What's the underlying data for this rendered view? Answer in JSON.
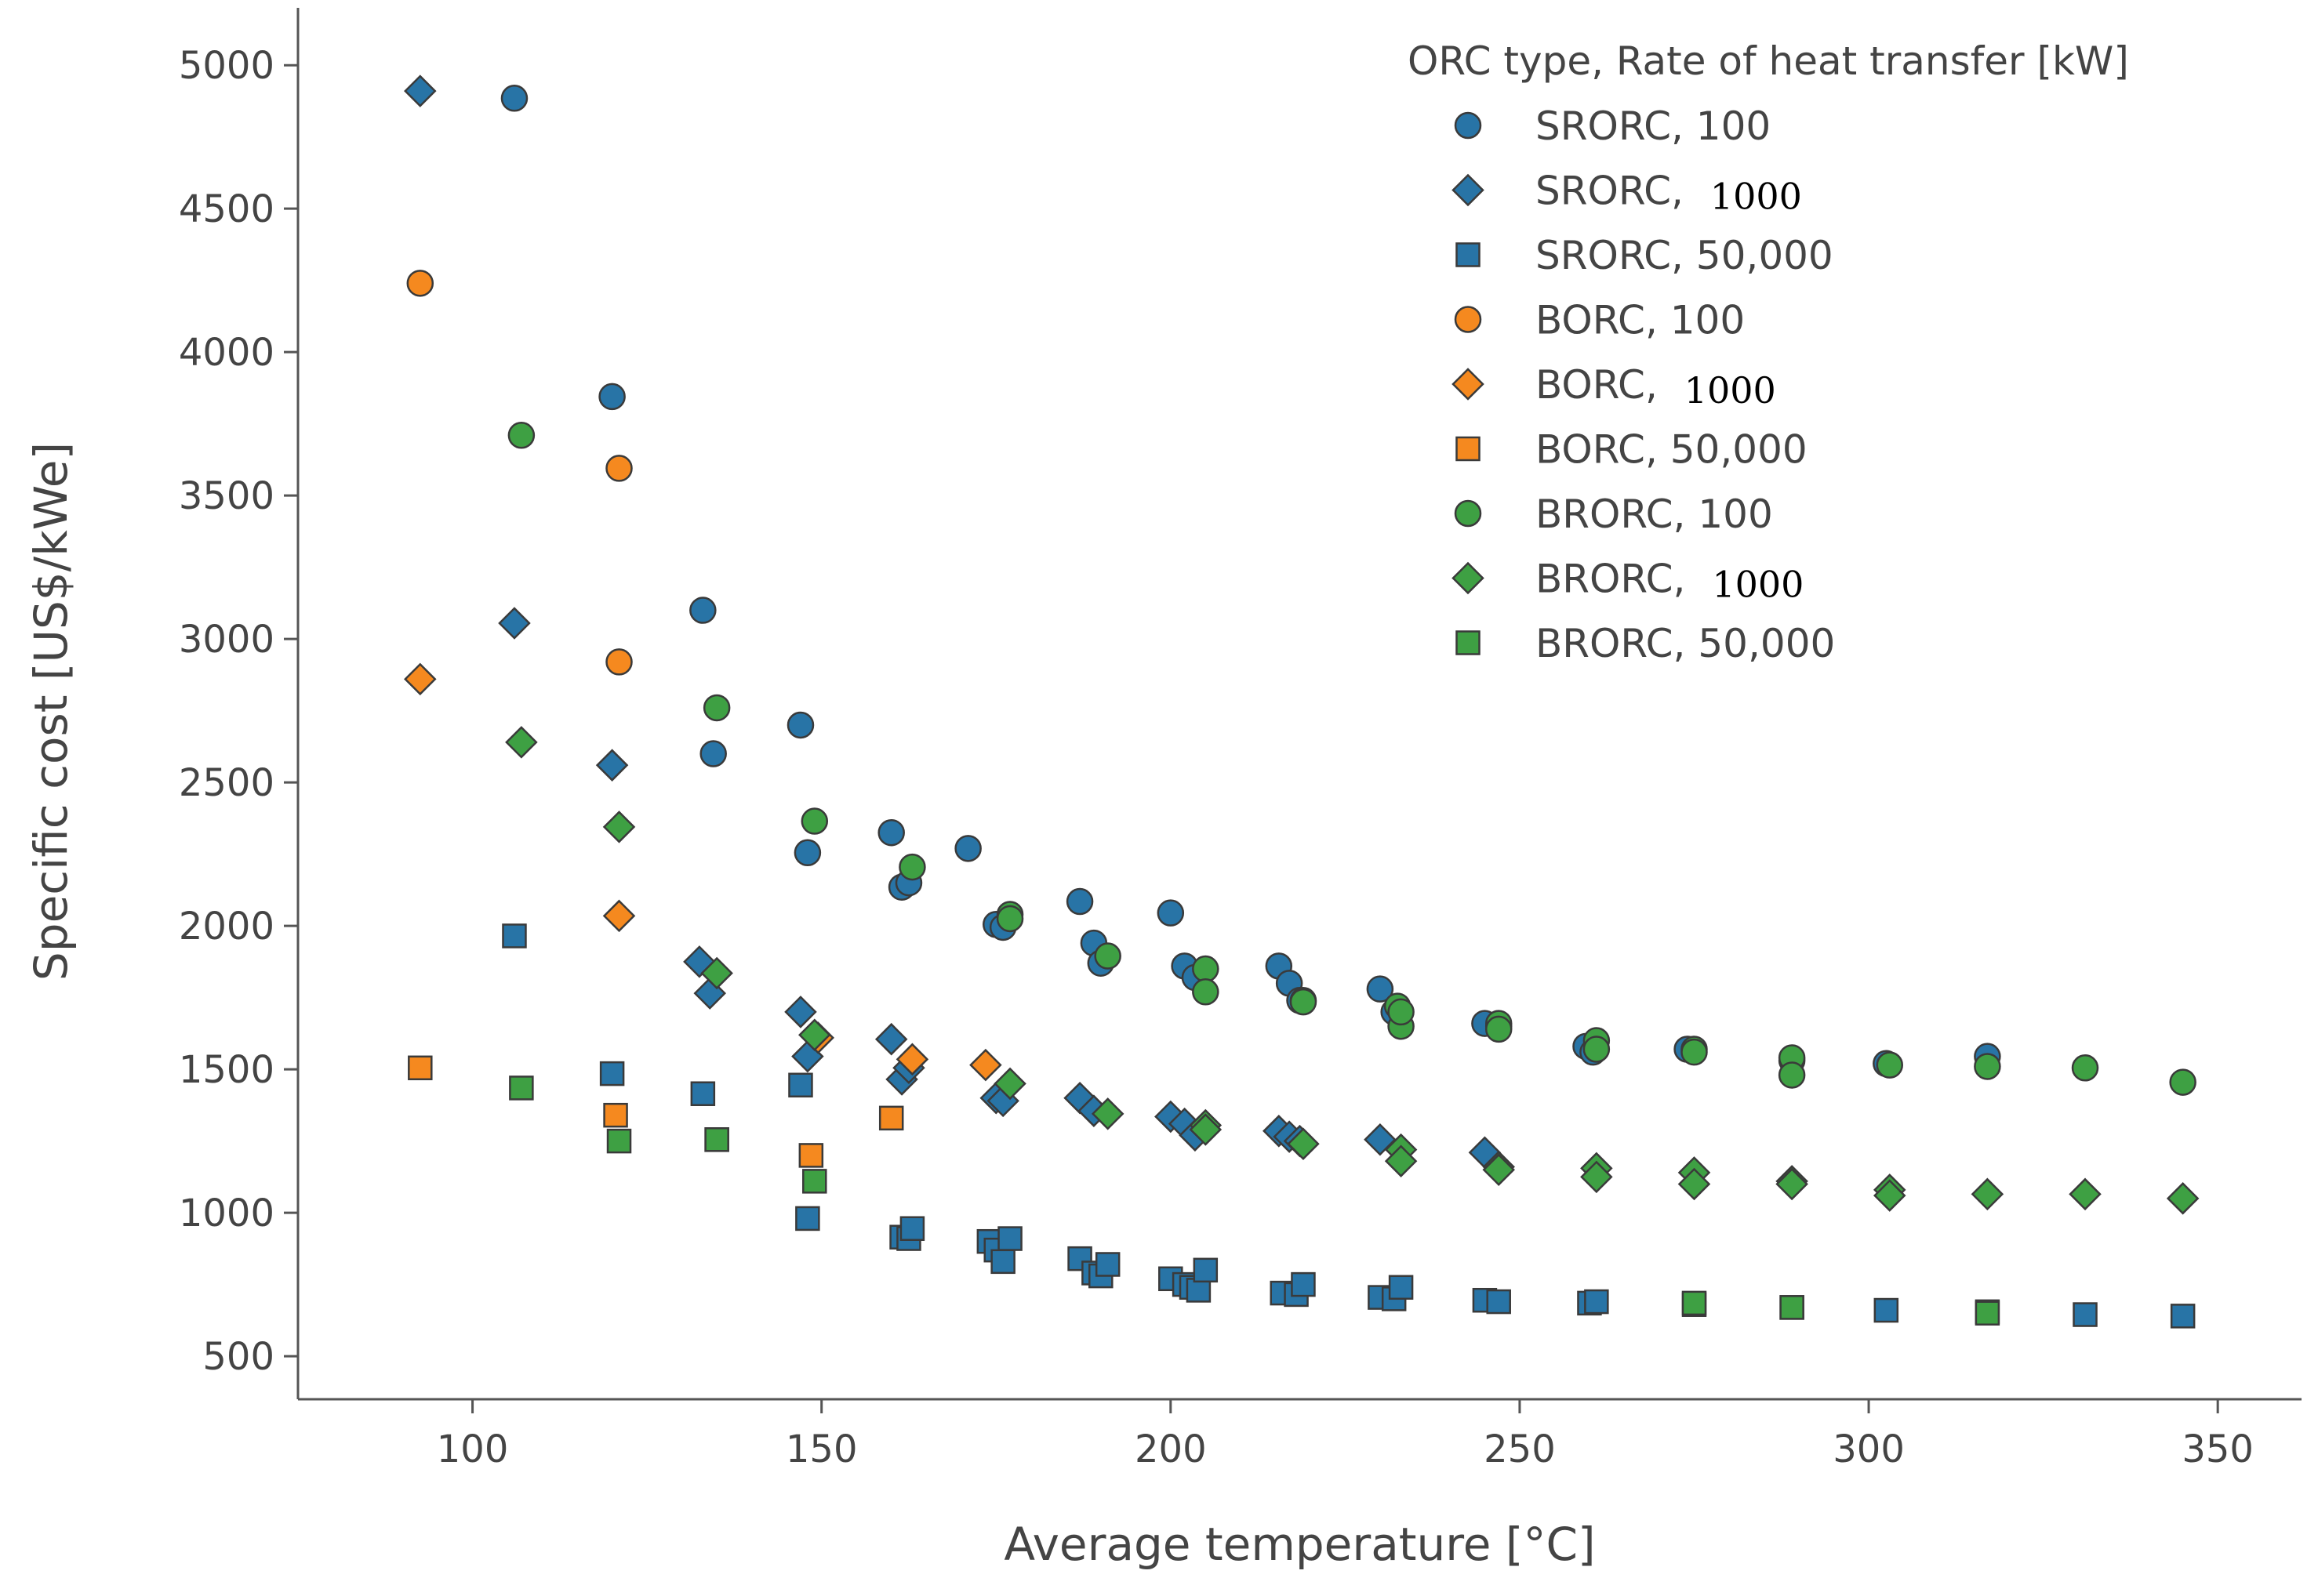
{
  "colors": {
    "SRORC": "#2874a6",
    "BORC": "#f5891f",
    "BRORC": "#3ea043",
    "axis": "#555555",
    "marker_edge": "#3a3a3a"
  },
  "chart_data": {
    "type": "scatter",
    "xlabel": "Average temperature [°C]",
    "ylabel": "Specific cost [US$/kWe]",
    "xlim": [
      75,
      362
    ],
    "ylim": [
      350,
      5200
    ],
    "xticks": [
      "100",
      "150",
      "200",
      "250",
      "300",
      "350"
    ],
    "yticks": [
      "500",
      "1000",
      "1500",
      "2000",
      "2500",
      "3000",
      "3500",
      "4000",
      "4500",
      "5000"
    ],
    "legend": {
      "title": "ORC type, Rate of heat transfer [kW]",
      "position": "top-right",
      "entries": [
        {
          "prefix": "SRORC, ",
          "num": "100",
          "serif": false
        },
        {
          "prefix": "SRORC, ",
          "num": "1000",
          "serif": true
        },
        {
          "prefix": "SRORC, ",
          "num": "50,000",
          "serif": false
        },
        {
          "prefix": "BORC, ",
          "num": "100",
          "serif": false
        },
        {
          "prefix": "BORC, ",
          "num": "1000",
          "serif": true
        },
        {
          "prefix": "BORC, ",
          "num": "50,000",
          "serif": false
        },
        {
          "prefix": "BRORC, ",
          "num": "100",
          "serif": false
        },
        {
          "prefix": "BRORC, ",
          "num": "1000",
          "serif": true
        },
        {
          "prefix": "BRORC, ",
          "num": "50,000",
          "serif": false
        }
      ]
    },
    "series": [
      {
        "name": "SRORC, 100",
        "orc": "SRORC",
        "marker": "circle",
        "x": [
          106,
          120,
          133,
          134.5,
          147,
          148,
          160,
          161.5,
          162.5,
          171,
          175,
          176,
          187,
          189,
          190,
          200,
          202,
          203.5,
          215.5,
          217,
          218.5,
          230,
          232,
          245,
          247,
          259.5,
          260.5,
          274,
          289,
          302.5,
          317
        ],
        "y": [
          4885,
          3845,
          3100,
          2600,
          2700,
          2255,
          2325,
          2135,
          2150,
          2270,
          2005,
          1995,
          2085,
          1940,
          1870,
          2045,
          1860,
          1820,
          1860,
          1800,
          1740,
          1780,
          1700,
          1660,
          1650,
          1580,
          1560,
          1570,
          1530,
          1520,
          1545
        ]
      },
      {
        "name": "SRORC, 1000",
        "orc": "SRORC",
        "marker": "diamond",
        "x": [
          92.5,
          106,
          120,
          132.5,
          134,
          147,
          148,
          160,
          161.5,
          162.5,
          175,
          176,
          187,
          189,
          200,
          202,
          203.5,
          215.5,
          217,
          218.5,
          230,
          245
        ],
        "y": [
          4910,
          3055,
          2560,
          1875,
          1765,
          1700,
          1545,
          1605,
          1465,
          1505,
          1400,
          1390,
          1400,
          1355,
          1335,
          1310,
          1270,
          1285,
          1265,
          1250,
          1255,
          1210
        ]
      },
      {
        "name": "SRORC, 50,000",
        "orc": "SRORC",
        "marker": "square",
        "x": [
          106,
          120,
          133,
          147,
          148,
          161.5,
          162.5,
          163,
          174,
          175,
          176,
          177,
          187,
          189,
          190,
          191,
          200,
          202,
          203,
          204,
          205,
          216,
          218,
          219,
          230,
          232,
          233,
          245,
          247,
          260,
          261,
          275,
          289,
          302.5,
          317,
          331,
          345
        ],
        "y": [
          1965,
          1485,
          1415,
          1445,
          980,
          915,
          910,
          945,
          900,
          870,
          830,
          910,
          840,
          790,
          780,
          820,
          770,
          750,
          740,
          730,
          800,
          720,
          715,
          750,
          705,
          700,
          740,
          695,
          690,
          685,
          690,
          680,
          670,
          660,
          655,
          645,
          640
        ]
      },
      {
        "name": "BORC, 100",
        "orc": "BORC",
        "marker": "circle",
        "x": [
          92.5,
          121,
          121
        ],
        "y": [
          4240,
          3595,
          2920
        ]
      },
      {
        "name": "BORC, 1000",
        "orc": "BORC",
        "marker": "diamond",
        "x": [
          92.5,
          121,
          149.5,
          163,
          173.5
        ],
        "y": [
          2860,
          2035,
          1610,
          1535,
          1515
        ]
      },
      {
        "name": "BORC, 50,000",
        "orc": "BORC",
        "marker": "square",
        "x": [
          92.5,
          120.5,
          135,
          148.5,
          160
        ],
        "y": [
          1505,
          1340,
          1255,
          1200,
          1330
        ]
      },
      {
        "name": "BRORC, 100",
        "orc": "BRORC",
        "marker": "circle",
        "x": [
          107,
          135,
          149,
          163,
          177,
          191,
          205,
          219,
          232.5,
          233,
          247,
          261,
          275,
          289,
          303,
          317,
          331,
          345,
          177,
          205,
          219,
          233,
          247,
          261,
          275,
          289
        ],
        "y": [
          3710,
          2760,
          2365,
          2205,
          2040,
          1895,
          1850,
          1740,
          1720,
          1650,
          1660,
          1600,
          1570,
          1540,
          1515,
          1510,
          1505,
          1455,
          2025,
          1770,
          1735,
          1700,
          1640,
          1570,
          1560,
          1480
        ]
      },
      {
        "name": "BRORC, 1000",
        "orc": "BRORC",
        "marker": "diamond",
        "x": [
          107,
          121,
          135,
          149,
          177,
          191,
          205,
          219,
          233,
          247,
          261,
          275,
          289,
          303,
          317,
          331,
          345,
          205,
          233,
          247,
          261,
          275,
          289,
          303
        ],
        "y": [
          2640,
          2345,
          1835,
          1620,
          1450,
          1345,
          1305,
          1240,
          1220,
          1160,
          1155,
          1140,
          1110,
          1080,
          1065,
          1065,
          1050,
          1290,
          1180,
          1150,
          1125,
          1100,
          1100,
          1060
        ]
      },
      {
        "name": "BRORC, 50,000",
        "orc": "BRORC",
        "marker": "square",
        "x": [
          107,
          121,
          135,
          149,
          275,
          289,
          317
        ],
        "y": [
          1435,
          1250,
          1255,
          1110,
          685,
          670,
          650
        ]
      }
    ]
  }
}
